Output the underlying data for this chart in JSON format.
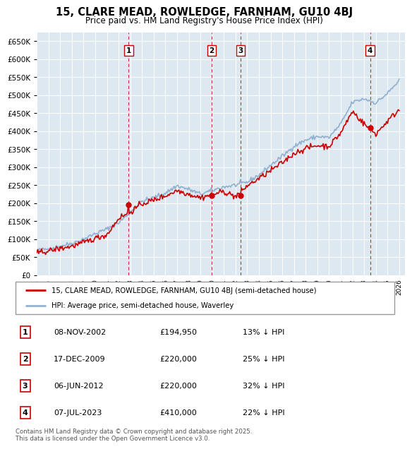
{
  "title": "15, CLARE MEAD, ROWLEDGE, FARNHAM, GU10 4BJ",
  "subtitle": "Price paid vs. HM Land Registry's House Price Index (HPI)",
  "legend_line1": "15, CLARE MEAD, ROWLEDGE, FARNHAM, GU10 4BJ (semi-detached house)",
  "legend_line2": "HPI: Average price, semi-detached house, Waverley",
  "footer": "Contains HM Land Registry data © Crown copyright and database right 2025.\nThis data is licensed under the Open Government Licence v3.0.",
  "sale_color": "#cc0000",
  "hpi_color": "#88aacc",
  "vline_color": "#cc0000",
  "background_color": "#dde8f0",
  "ylim": [
    0,
    675000
  ],
  "yticks": [
    0,
    50000,
    100000,
    150000,
    200000,
    250000,
    300000,
    350000,
    400000,
    450000,
    500000,
    550000,
    600000,
    650000
  ],
  "xmin": 1995.0,
  "xmax": 2026.5,
  "sales": [
    {
      "date": 2002.86,
      "price": 194950,
      "label": "1",
      "hpi_pct": "13% ↓ HPI",
      "date_str": "08-NOV-2002",
      "price_str": "£194,950"
    },
    {
      "date": 2009.96,
      "price": 220000,
      "label": "2",
      "hpi_pct": "25% ↓ HPI",
      "date_str": "17-DEC-2009",
      "price_str": "£220,000"
    },
    {
      "date": 2012.43,
      "price": 220000,
      "label": "3",
      "hpi_pct": "32% ↓ HPI",
      "date_str": "06-JUN-2012",
      "price_str": "£220,000"
    },
    {
      "date": 2023.51,
      "price": 410000,
      "label": "4",
      "hpi_pct": "22% ↓ HPI",
      "date_str": "07-JUL-2023",
      "price_str": "£410,000"
    }
  ]
}
